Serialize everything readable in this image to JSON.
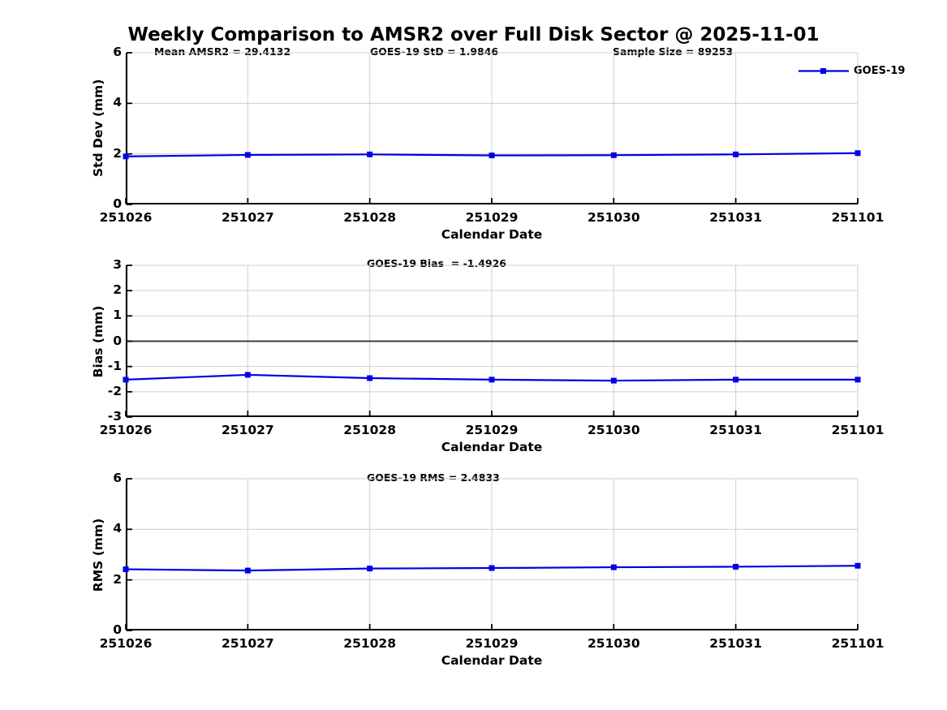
{
  "figure": {
    "title": "Weekly Comparison to AMSR2 over Full Disk Sector @ 2025-11-01"
  },
  "colors": {
    "series_blue": "#0000e6",
    "grid": "#cfcfcf",
    "spine": "#000000",
    "zero_line": "#3d3d3d",
    "text": "#000000",
    "background": "#ffffff"
  },
  "chart_data": [
    {
      "id": "stddev",
      "type": "line",
      "categories": [
        "251026",
        "251027",
        "251028",
        "251029",
        "251030",
        "251031",
        "251101"
      ],
      "series": [
        {
          "name": "GOES-19",
          "values": [
            1.9,
            1.96,
            1.98,
            1.94,
            1.95,
            1.98,
            2.03
          ]
        }
      ],
      "xlabel": "Calendar Date",
      "ylabel": "Std Dev (mm)",
      "ylim": [
        0,
        6
      ],
      "yticks": [
        0,
        2,
        4,
        6
      ],
      "grid": true,
      "zero_line": false,
      "legend": {
        "visible": true,
        "position": "top-right",
        "entries": [
          "GOES-19"
        ]
      },
      "annotations": [
        {
          "text": "Mean AMSR2 = 29.4132"
        },
        {
          "text": "GOES-19 StD = 1.9846"
        },
        {
          "text": "Sample Size = 89253"
        }
      ]
    },
    {
      "id": "bias",
      "type": "line",
      "categories": [
        "251026",
        "251027",
        "251028",
        "251029",
        "251030",
        "251031",
        "251101"
      ],
      "series": [
        {
          "name": "GOES-19",
          "values": [
            -1.52,
            -1.33,
            -1.46,
            -1.52,
            -1.56,
            -1.52,
            -1.52
          ]
        }
      ],
      "xlabel": "Calendar Date",
      "ylabel": "Bias (mm)",
      "ylim": [
        -3,
        3
      ],
      "yticks": [
        -3,
        -2,
        -1,
        0,
        1,
        2,
        3
      ],
      "grid": true,
      "zero_line": true,
      "legend": {
        "visible": false
      },
      "annotations": [
        {
          "text": "GOES-19 Bias  = -1.4926"
        }
      ]
    },
    {
      "id": "rms",
      "type": "line",
      "categories": [
        "251026",
        "251027",
        "251028",
        "251029",
        "251030",
        "251031",
        "251101"
      ],
      "series": [
        {
          "name": "GOES-19",
          "values": [
            2.42,
            2.37,
            2.45,
            2.47,
            2.5,
            2.52,
            2.56
          ]
        }
      ],
      "xlabel": "Calendar Date",
      "ylabel": "RMS (mm)",
      "ylim": [
        0,
        6
      ],
      "yticks": [
        0,
        2,
        4,
        6
      ],
      "grid": true,
      "zero_line": false,
      "legend": {
        "visible": false
      },
      "annotations": [
        {
          "text": "GOES-19 RMS = 2.4833"
        }
      ]
    }
  ]
}
